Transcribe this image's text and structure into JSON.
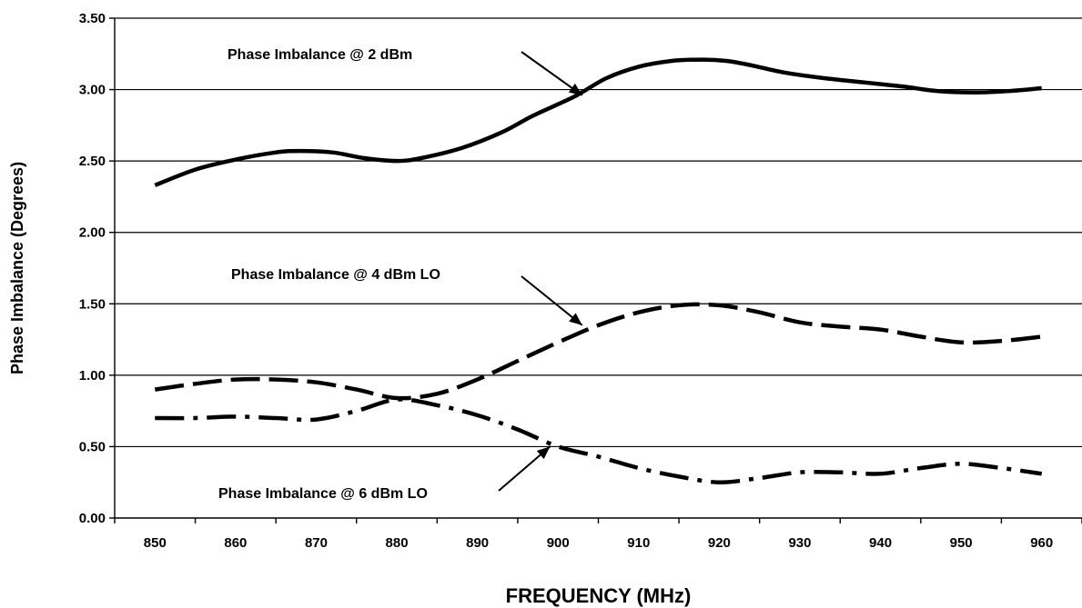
{
  "chart_data": {
    "type": "line",
    "xlabel": "FREQUENCY (MHz)",
    "ylabel": "Phase Imbalance (Degrees)",
    "xlim": [
      845,
      965
    ],
    "ylim": [
      0,
      3.5
    ],
    "x_ticks": [
      "850",
      "860",
      "870",
      "880",
      "890",
      "900",
      "910",
      "920",
      "930",
      "940",
      "950",
      "960"
    ],
    "y_ticks": [
      "0.00",
      "0.50",
      "1.00",
      "1.50",
      "2.00",
      "2.50",
      "3.00",
      "3.50"
    ],
    "grid": "horizontal",
    "series": [
      {
        "name": "Phase Imbalance @ 2 dBm",
        "style": "solid",
        "x": [
          850,
          855,
          860,
          865,
          868,
          872,
          876,
          880,
          883,
          888,
          893,
          897,
          902,
          906,
          910,
          914,
          918,
          921,
          924,
          928,
          933,
          938,
          943,
          947,
          952,
          956,
          960
        ],
        "y": [
          2.33,
          2.44,
          2.51,
          2.56,
          2.57,
          2.56,
          2.52,
          2.5,
          2.52,
          2.59,
          2.7,
          2.82,
          2.95,
          3.08,
          3.16,
          3.2,
          3.21,
          3.2,
          3.17,
          3.12,
          3.08,
          3.05,
          3.02,
          2.99,
          2.98,
          2.99,
          3.01
        ]
      },
      {
        "name": "Phase Imbalance @ 4 dBm LO",
        "style": "dashed",
        "x": [
          850,
          855,
          860,
          865,
          870,
          875,
          880,
          885,
          890,
          895,
          900,
          905,
          910,
          915,
          920,
          925,
          930,
          935,
          940,
          945,
          950,
          955,
          960
        ],
        "y": [
          0.9,
          0.94,
          0.97,
          0.97,
          0.95,
          0.9,
          0.84,
          0.87,
          0.97,
          1.1,
          1.23,
          1.35,
          1.44,
          1.49,
          1.49,
          1.44,
          1.37,
          1.34,
          1.32,
          1.27,
          1.23,
          1.24,
          1.27
        ]
      },
      {
        "name": "Phase Imbalance @ 6 dBm LO",
        "style": "dash-dot",
        "x": [
          850,
          855,
          860,
          865,
          870,
          875,
          880,
          885,
          890,
          895,
          900,
          905,
          910,
          915,
          920,
          925,
          930,
          935,
          940,
          945,
          950,
          955,
          960
        ],
        "y": [
          0.7,
          0.7,
          0.71,
          0.7,
          0.69,
          0.75,
          0.83,
          0.79,
          0.72,
          0.62,
          0.5,
          0.43,
          0.35,
          0.29,
          0.25,
          0.28,
          0.32,
          0.32,
          0.31,
          0.35,
          0.38,
          0.35,
          0.31
        ]
      }
    ],
    "annotations": [
      {
        "text": "Phase Imbalance @ 2 dBm",
        "series": 0,
        "x": 903,
        "y": 2.96
      },
      {
        "text": "Phase Imbalance @ 4 dBm LO",
        "series": 1,
        "x": 903,
        "y": 1.35
      },
      {
        "text": "Phase Imbalance @ 6 dBm LO",
        "series": 2,
        "x": 899,
        "y": 0.5
      }
    ]
  }
}
